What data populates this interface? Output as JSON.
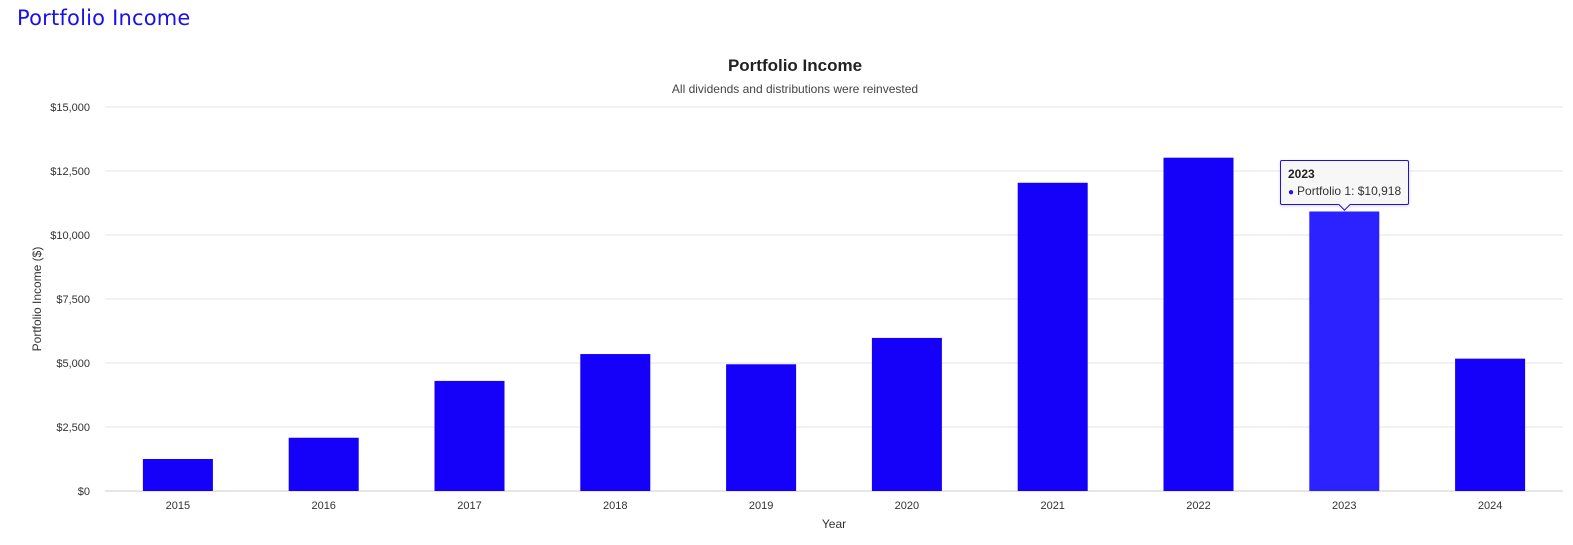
{
  "page": {
    "heading": "Portfolio Income"
  },
  "colors": {
    "bar": "#1500fa",
    "bar_highlight": "#2b22ff",
    "heading": "#1a0ff0",
    "grid": "#e6e6e6"
  },
  "tooltip": {
    "year": "2023",
    "series_label": "Portfolio 1: $10,918"
  },
  "chart_data": {
    "type": "bar",
    "title": "Portfolio Income",
    "subtitle": "All dividends and distributions were reinvested",
    "xlabel": "Year",
    "ylabel": "Portfolio Income ($)",
    "categories": [
      "2015",
      "2016",
      "2017",
      "2018",
      "2019",
      "2020",
      "2021",
      "2022",
      "2023",
      "2024"
    ],
    "series": [
      {
        "name": "Portfolio 1",
        "values": [
          1250,
          2080,
          4300,
          5350,
          4950,
          5980,
          12040,
          13020,
          10918,
          5170
        ]
      }
    ],
    "ylim": [
      0,
      15000
    ],
    "yticks": [
      "$0",
      "$2,500",
      "$5,000",
      "$7,500",
      "$10,000",
      "$12,500",
      "$15,000"
    ],
    "ytick_values": [
      0,
      2500,
      5000,
      7500,
      10000,
      12500,
      15000
    ],
    "highlighted_category": "2023",
    "grid": true
  }
}
